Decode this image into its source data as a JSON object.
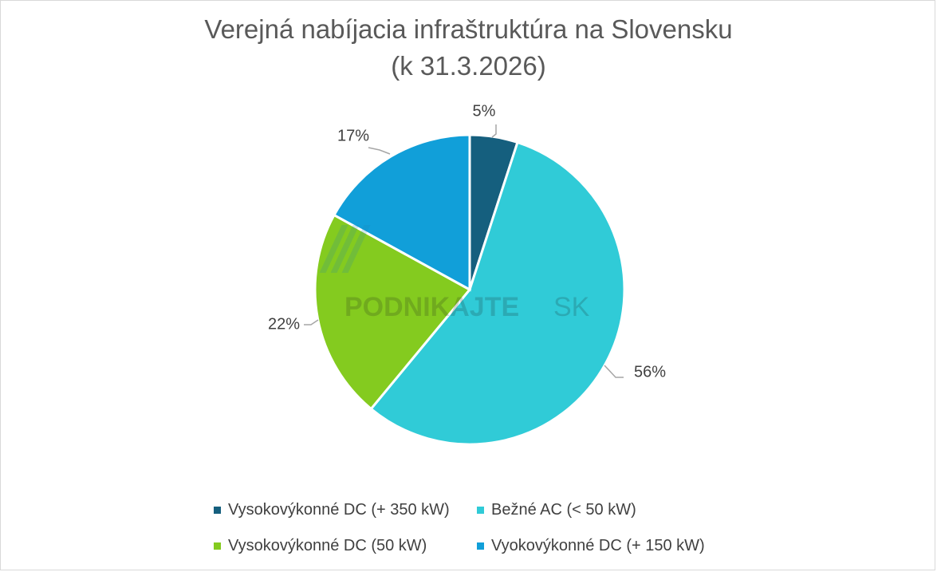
{
  "chart_data": {
    "type": "pie",
    "title_line1": "Verejná nabíjacia infraštruktúra na Slovensku",
    "title_line2": "(k 31.3.2026)",
    "slices": [
      {
        "name": "Vysokovýkonné DC (+ 350 kW)",
        "value": 5,
        "label": "5%",
        "color": "#155f7e"
      },
      {
        "name": "Bežné AC (< 50 kW)",
        "value": 56,
        "label": "56%",
        "color": "#30cbd7"
      },
      {
        "name": "Vysokovýkonné DC (50 kW)",
        "value": 22,
        "label": "22%",
        "color": "#84cb1f"
      },
      {
        "name": "Vyokovýkonné DC (+ 150 kW)",
        "value": 17,
        "label": "17%",
        "color": "#119fd9"
      }
    ],
    "legend_position": "bottom"
  },
  "watermark": {
    "text_bold": "PODNIKAJTE",
    "text_light": "SK"
  }
}
